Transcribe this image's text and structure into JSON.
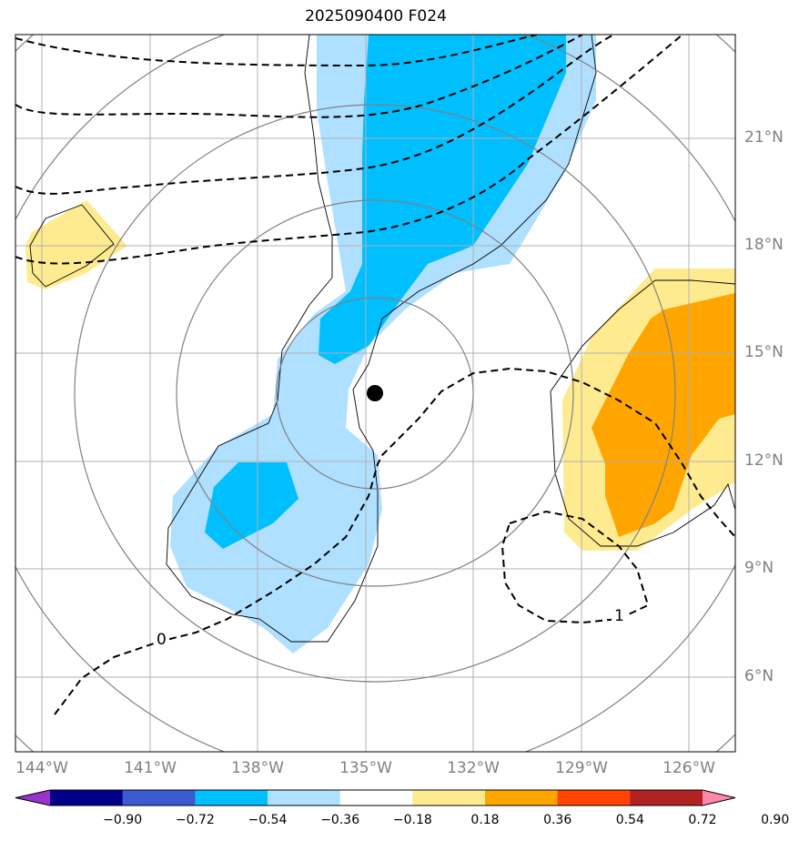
{
  "title": "2025090400 F024",
  "lat_ticks": [
    "21°N",
    "18°N",
    "15°N",
    "12°N",
    "9°N",
    "6°N"
  ],
  "lon_ticks": [
    "144°W",
    "141°W",
    "138°W",
    "135°W",
    "132°W",
    "129°W",
    "126°W"
  ],
  "colorbar": {
    "labels": [
      "−0.90",
      "−0.72",
      "−0.54",
      "−0.36",
      "−0.18",
      "0.18",
      "0.36",
      "0.54",
      "0.72",
      "0.90"
    ],
    "colors": [
      "#9932cc",
      "#00008b",
      "#3b5bd0",
      "#00bfff",
      "#b0e0ff",
      "#ffffff",
      "#ffeb8f",
      "#ffa500",
      "#ff4500",
      "#b22222",
      "#ff88aa"
    ]
  },
  "contour_labels": [
    "0",
    "1"
  ],
  "colors": {
    "grid": "#b0b0b0",
    "circles": "#808080",
    "dashed": "#000000",
    "center_marker": "#000000"
  }
}
